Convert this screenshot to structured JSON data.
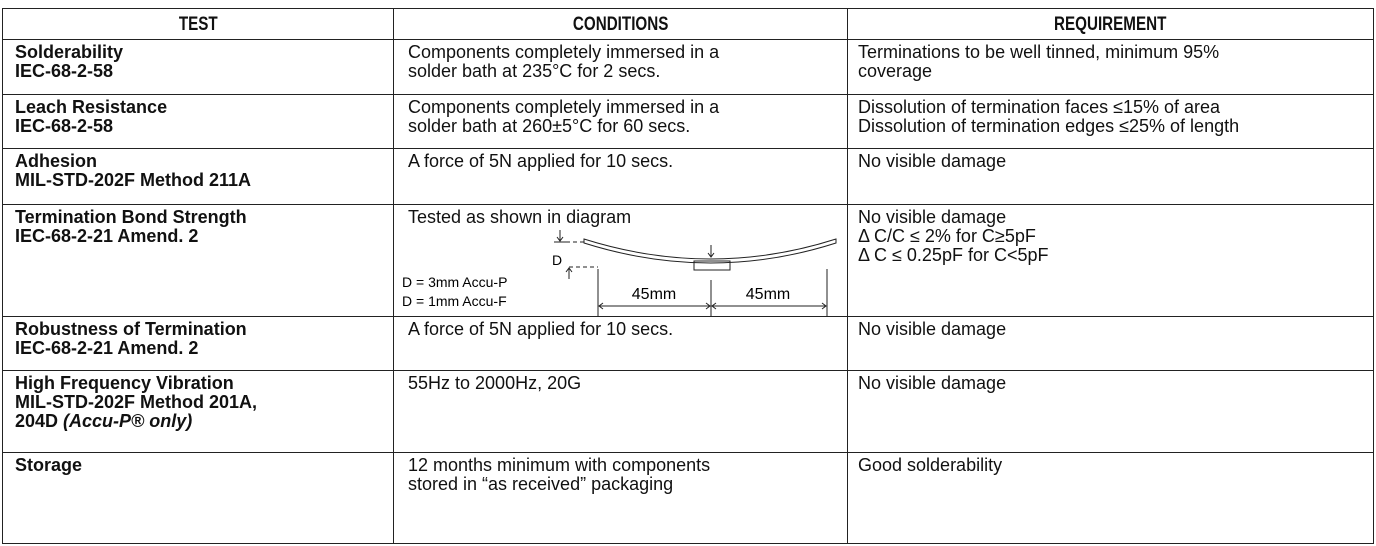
{
  "table": {
    "headers": [
      "TEST",
      "CONDITIONS",
      "REQUIREMENT"
    ],
    "rows": [
      {
        "test": "Solderability",
        "standard": [
          "IEC-68-2-58"
        ],
        "conditions": [
          "Components completely immersed in a",
          "solder bath at 235°C for 2 secs."
        ],
        "requirement": [
          "Terminations to be well tinned, minimum 95%",
          "coverage"
        ]
      },
      {
        "test": "Leach Resistance",
        "standard": [
          "IEC-68-2-58"
        ],
        "conditions": [
          "Components completely immersed in a",
          "solder bath at 260±5°C for 60 secs."
        ],
        "requirement": [
          "Dissolution of termination faces ≤15% of area",
          "Dissolution of termination edges ≤25% of length"
        ]
      },
      {
        "test": "Adhesion",
        "standard": [
          "MIL-STD-202F Method 211A"
        ],
        "conditions": [
          "A force of 5N applied for 10 secs."
        ],
        "requirement": [
          "No visible damage"
        ]
      },
      {
        "test": "Termination Bond Strength",
        "standard": [
          "IEC-68-2-21 Amend. 2"
        ],
        "conditions": [
          "Tested as shown in diagram"
        ],
        "requirement": [
          "No visible damage",
          "Δ C/C ≤ 2% for C≥5pF",
          "Δ C ≤ 0.25pF for C<5pF"
        ],
        "diagram": {
          "d_label": "D",
          "notes": [
            "D = 3mm Accu-P",
            "D = 1mm Accu-F"
          ],
          "spans": [
            "45mm",
            "45mm"
          ]
        }
      },
      {
        "test": "Robustness of Termination",
        "standard": [
          "IEC-68-2-21 Amend. 2"
        ],
        "conditions": [
          "A force of 5N applied for 10 secs."
        ],
        "requirement": [
          "No visible damage"
        ]
      },
      {
        "test": "High Frequency Vibration",
        "standard": [
          "MIL-STD-202F Method 201A,",
          "204D"
        ],
        "note": "(Accu-P® only)",
        "conditions": [
          "55Hz to 2000Hz, 20G"
        ],
        "requirement": [
          "No visible damage"
        ]
      },
      {
        "test": "Storage",
        "standard": [],
        "conditions": [
          "12 months minimum with components",
          "stored in “as received” packaging"
        ],
        "requirement": [
          "Good solderability"
        ]
      }
    ]
  }
}
